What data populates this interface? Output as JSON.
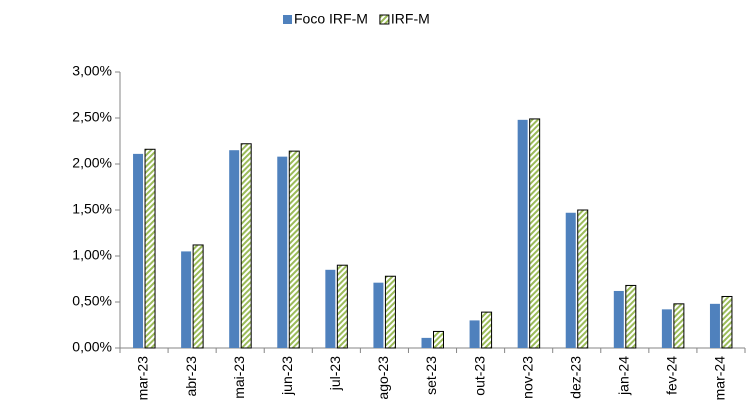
{
  "chart_data": {
    "type": "bar",
    "categories": [
      "mar-23",
      "abr-23",
      "mai-23",
      "jun-23",
      "jul-23",
      "ago-23",
      "set-23",
      "out-23",
      "nov-23",
      "dez-23",
      "jan-24",
      "fev-24",
      "mar-24"
    ],
    "series": [
      {
        "name": "Foco IRF-M",
        "color": "#4f81bd",
        "values": [
          2.11,
          1.05,
          2.15,
          2.08,
          0.85,
          0.71,
          0.11,
          0.3,
          2.48,
          1.47,
          0.62,
          0.42,
          0.48
        ]
      },
      {
        "name": "IRF-M",
        "color": "#9bbb59",
        "pattern": "hatch",
        "values": [
          2.16,
          1.12,
          2.22,
          2.14,
          0.9,
          0.78,
          0.18,
          0.39,
          2.49,
          1.5,
          0.68,
          0.48,
          0.56
        ]
      }
    ],
    "ylim": [
      0,
      3
    ],
    "yticks": [
      {
        "value": 0,
        "label": "0,00%"
      },
      {
        "value": 0.5,
        "label": "0,50%"
      },
      {
        "value": 1,
        "label": "1,00%"
      },
      {
        "value": 1.5,
        "label": "1,50%"
      },
      {
        "value": 2,
        "label": "2,00%"
      },
      {
        "value": 2.5,
        "label": "2,50%"
      },
      {
        "value": 3,
        "label": "3,00%"
      }
    ],
    "legend": "top",
    "grid": false
  }
}
